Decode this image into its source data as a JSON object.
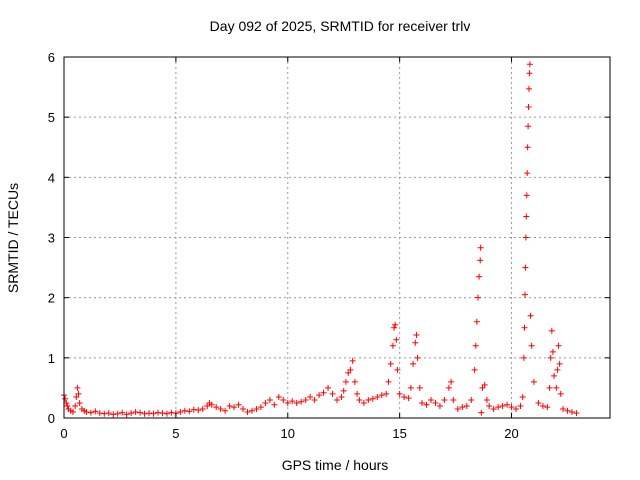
{
  "chart_data": {
    "type": "scatter",
    "title": "Day 092 of 2025, SRMTID for receiver trlv",
    "xlabel": "GPS time / hours",
    "ylabel": "SRMTID / TECUs",
    "xlim": [
      0,
      24.4
    ],
    "ylim": [
      0,
      6
    ],
    "xticks": [
      0,
      5,
      10,
      15,
      20
    ],
    "yticks": [
      0,
      1,
      2,
      3,
      4,
      5,
      6
    ],
    "xtick_labels": [
      "0",
      "5",
      "10",
      "15",
      "20"
    ],
    "ytick_labels": [
      "0",
      "1",
      "2",
      "3",
      "4",
      "5",
      "6"
    ],
    "grid": true,
    "marker": "plus",
    "color": "#ff0000",
    "series": [
      {
        "name": "trlv",
        "points": [
          [
            0.0,
            0.38
          ],
          [
            0.05,
            0.32
          ],
          [
            0.1,
            0.25
          ],
          [
            0.15,
            0.2
          ],
          [
            0.2,
            0.15
          ],
          [
            0.3,
            0.12
          ],
          [
            0.4,
            0.1
          ],
          [
            0.5,
            0.2
          ],
          [
            0.55,
            0.35
          ],
          [
            0.6,
            0.5
          ],
          [
            0.65,
            0.4
          ],
          [
            0.7,
            0.25
          ],
          [
            0.8,
            0.15
          ],
          [
            0.9,
            0.12
          ],
          [
            1.0,
            0.1
          ],
          [
            1.2,
            0.09
          ],
          [
            1.4,
            0.11
          ],
          [
            1.6,
            0.08
          ],
          [
            1.8,
            0.07
          ],
          [
            2.0,
            0.08
          ],
          [
            2.2,
            0.06
          ],
          [
            2.4,
            0.07
          ],
          [
            2.6,
            0.09
          ],
          [
            2.8,
            0.06
          ],
          [
            3.0,
            0.08
          ],
          [
            3.2,
            0.1
          ],
          [
            3.4,
            0.09
          ],
          [
            3.6,
            0.07
          ],
          [
            3.8,
            0.08
          ],
          [
            4.0,
            0.07
          ],
          [
            4.2,
            0.09
          ],
          [
            4.4,
            0.08
          ],
          [
            4.6,
            0.07
          ],
          [
            4.8,
            0.09
          ],
          [
            5.0,
            0.08
          ],
          [
            5.2,
            0.1
          ],
          [
            5.4,
            0.12
          ],
          [
            5.6,
            0.11
          ],
          [
            5.8,
            0.14
          ],
          [
            6.0,
            0.13
          ],
          [
            6.2,
            0.15
          ],
          [
            6.4,
            0.2
          ],
          [
            6.5,
            0.25
          ],
          [
            6.6,
            0.22
          ],
          [
            6.8,
            0.18
          ],
          [
            7.0,
            0.15
          ],
          [
            7.2,
            0.12
          ],
          [
            7.4,
            0.2
          ],
          [
            7.6,
            0.18
          ],
          [
            7.8,
            0.22
          ],
          [
            8.0,
            0.15
          ],
          [
            8.2,
            0.1
          ],
          [
            8.4,
            0.12
          ],
          [
            8.6,
            0.15
          ],
          [
            8.8,
            0.18
          ],
          [
            9.0,
            0.25
          ],
          [
            9.2,
            0.3
          ],
          [
            9.4,
            0.22
          ],
          [
            9.6,
            0.35
          ],
          [
            9.8,
            0.3
          ],
          [
            10.0,
            0.25
          ],
          [
            10.2,
            0.28
          ],
          [
            10.4,
            0.25
          ],
          [
            10.6,
            0.27
          ],
          [
            10.8,
            0.3
          ],
          [
            11.0,
            0.35
          ],
          [
            11.2,
            0.3
          ],
          [
            11.4,
            0.38
          ],
          [
            11.6,
            0.42
          ],
          [
            11.8,
            0.5
          ],
          [
            12.0,
            0.4
          ],
          [
            12.2,
            0.3
          ],
          [
            12.4,
            0.35
          ],
          [
            12.5,
            0.45
          ],
          [
            12.6,
            0.6
          ],
          [
            12.7,
            0.75
          ],
          [
            12.8,
            0.8
          ],
          [
            12.9,
            0.95
          ],
          [
            13.0,
            0.6
          ],
          [
            13.1,
            0.4
          ],
          [
            13.2,
            0.3
          ],
          [
            13.4,
            0.25
          ],
          [
            13.6,
            0.3
          ],
          [
            13.8,
            0.32
          ],
          [
            14.0,
            0.35
          ],
          [
            14.2,
            0.38
          ],
          [
            14.4,
            0.4
          ],
          [
            14.5,
            0.6
          ],
          [
            14.6,
            0.9
          ],
          [
            14.7,
            1.2
          ],
          [
            14.75,
            1.5
          ],
          [
            14.8,
            1.55
          ],
          [
            14.85,
            1.3
          ],
          [
            14.9,
            0.8
          ],
          [
            15.0,
            0.4
          ],
          [
            15.2,
            0.35
          ],
          [
            15.4,
            0.33
          ],
          [
            15.5,
            0.5
          ],
          [
            15.6,
            0.9
          ],
          [
            15.7,
            1.25
          ],
          [
            15.75,
            1.38
          ],
          [
            15.8,
            1.0
          ],
          [
            15.9,
            0.5
          ],
          [
            16.0,
            0.25
          ],
          [
            16.2,
            0.22
          ],
          [
            16.4,
            0.3
          ],
          [
            16.6,
            0.25
          ],
          [
            16.8,
            0.2
          ],
          [
            17.0,
            0.3
          ],
          [
            17.2,
            0.5
          ],
          [
            17.3,
            0.6
          ],
          [
            17.4,
            0.3
          ],
          [
            17.6,
            0.15
          ],
          [
            17.8,
            0.18
          ],
          [
            18.0,
            0.2
          ],
          [
            18.2,
            0.3
          ],
          [
            18.35,
            0.8
          ],
          [
            18.4,
            1.2
          ],
          [
            18.45,
            1.6
          ],
          [
            18.5,
            2.0
          ],
          [
            18.55,
            2.35
          ],
          [
            18.6,
            2.62
          ],
          [
            18.62,
            2.83
          ],
          [
            18.65,
            0.09
          ],
          [
            18.7,
            0.5
          ],
          [
            18.8,
            0.55
          ],
          [
            18.9,
            0.3
          ],
          [
            19.0,
            0.2
          ],
          [
            19.2,
            0.15
          ],
          [
            19.4,
            0.18
          ],
          [
            19.6,
            0.2
          ],
          [
            19.8,
            0.22
          ],
          [
            20.0,
            0.18
          ],
          [
            20.2,
            0.15
          ],
          [
            20.4,
            0.2
          ],
          [
            20.5,
            0.35
          ],
          [
            20.55,
            1.0
          ],
          [
            20.58,
            1.5
          ],
          [
            20.6,
            2.05
          ],
          [
            20.62,
            2.5
          ],
          [
            20.64,
            3.0
          ],
          [
            20.66,
            3.35
          ],
          [
            20.68,
            3.7
          ],
          [
            20.7,
            4.07
          ],
          [
            20.72,
            4.5
          ],
          [
            20.74,
            4.85
          ],
          [
            20.76,
            5.17
          ],
          [
            20.78,
            5.47
          ],
          [
            20.8,
            5.73
          ],
          [
            20.82,
            5.88
          ],
          [
            20.85,
            1.7
          ],
          [
            20.9,
            1.2
          ],
          [
            21.0,
            0.6
          ],
          [
            21.2,
            0.25
          ],
          [
            21.4,
            0.2
          ],
          [
            21.6,
            0.18
          ],
          [
            21.7,
            0.5
          ],
          [
            21.75,
            1.0
          ],
          [
            21.8,
            1.45
          ],
          [
            21.85,
            1.1
          ],
          [
            21.9,
            0.7
          ],
          [
            22.0,
            0.5
          ],
          [
            22.05,
            0.8
          ],
          [
            22.1,
            1.2
          ],
          [
            22.15,
            0.9
          ],
          [
            22.2,
            0.4
          ],
          [
            22.3,
            0.15
          ],
          [
            22.5,
            0.12
          ],
          [
            22.7,
            0.1
          ],
          [
            22.9,
            0.08
          ]
        ]
      }
    ]
  }
}
